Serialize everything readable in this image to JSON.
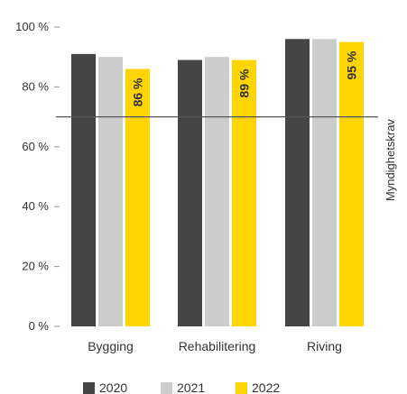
{
  "chart_data": {
    "type": "bar",
    "categories": [
      "Bygging",
      "Rehabilitering",
      "Riving"
    ],
    "series": [
      {
        "name": "2020",
        "values": [
          91,
          89,
          96
        ],
        "color": "#454545"
      },
      {
        "name": "2021",
        "values": [
          90,
          90,
          96
        ],
        "color": "#cccccc"
      },
      {
        "name": "2022",
        "values": [
          86,
          89,
          95
        ],
        "color": "#ffd400"
      }
    ],
    "data_labels": {
      "series": "2022",
      "texts": [
        "86 %",
        "89 %",
        "95 %"
      ]
    },
    "y_ticks": [
      {
        "value": 0,
        "label": "0 %"
      },
      {
        "value": 20,
        "label": "20 %"
      },
      {
        "value": 40,
        "label": "40 %"
      },
      {
        "value": 60,
        "label": "60 %"
      },
      {
        "value": 80,
        "label": "80 %"
      },
      {
        "value": 100,
        "label": "100 %"
      }
    ],
    "ylim": [
      0,
      100
    ],
    "reference_line": {
      "value": 70,
      "label": "Myndighetskrav",
      "color": "#555555"
    },
    "grid": false,
    "legend_position": "bottom"
  }
}
